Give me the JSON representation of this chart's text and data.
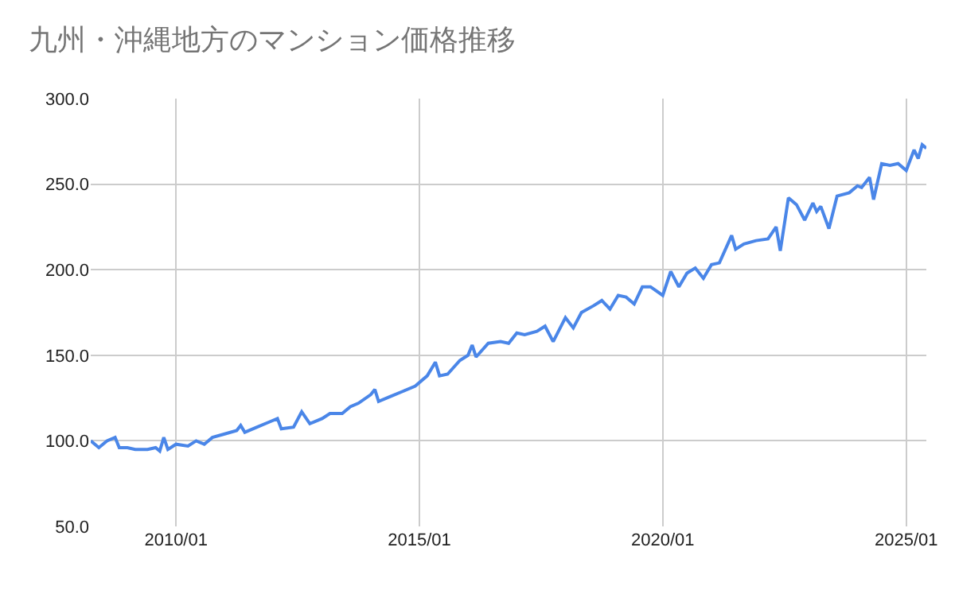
{
  "chart_data": {
    "type": "line",
    "title": "九州・沖縄地方のマンション価格推移",
    "x": [
      "2008-04",
      "2008-06",
      "2008-08",
      "2008-10",
      "2008-11",
      "2009-01",
      "2009-03",
      "2009-06",
      "2009-08",
      "2009-09",
      "2009-10",
      "2009-11",
      "2010-01",
      "2010-04",
      "2010-06",
      "2010-08",
      "2010-10",
      "2011-01",
      "2011-04",
      "2011-05",
      "2011-06",
      "2011-09",
      "2011-12",
      "2012-02",
      "2012-03",
      "2012-06",
      "2012-08",
      "2012-10",
      "2013-01",
      "2013-03",
      "2013-06",
      "2013-08",
      "2013-10",
      "2014-01",
      "2014-02",
      "2014-03",
      "2014-06",
      "2014-09",
      "2014-12",
      "2015-03",
      "2015-05",
      "2015-06",
      "2015-08",
      "2015-11",
      "2016-01",
      "2016-02",
      "2016-03",
      "2016-06",
      "2016-09",
      "2016-11",
      "2017-01",
      "2017-03",
      "2017-06",
      "2017-08",
      "2017-10",
      "2018-01",
      "2018-03",
      "2018-05",
      "2018-08",
      "2018-10",
      "2018-12",
      "2019-02",
      "2019-04",
      "2019-06",
      "2019-08",
      "2019-10",
      "2020-01",
      "2020-03",
      "2020-05",
      "2020-07",
      "2020-09",
      "2020-11",
      "2021-01",
      "2021-03",
      "2021-06",
      "2021-07",
      "2021-09",
      "2021-12",
      "2022-03",
      "2022-05",
      "2022-06",
      "2022-08",
      "2022-10",
      "2022-12",
      "2023-02",
      "2023-03",
      "2023-04",
      "2023-06",
      "2023-08",
      "2023-11",
      "2024-01",
      "2024-02",
      "2024-04",
      "2024-05",
      "2024-07",
      "2024-09",
      "2024-11",
      "2025-01",
      "2025-03",
      "2025-04",
      "2025-05",
      "2025-06"
    ],
    "series": [
      {
        "color": "#4a86e8",
        "values": [
          100,
          96,
          100,
          102,
          96,
          96,
          95,
          95,
          96,
          94,
          102,
          95,
          98,
          97,
          100,
          98,
          102,
          104,
          106,
          109,
          105,
          108,
          111,
          113,
          107,
          108,
          117,
          110,
          113,
          116,
          116,
          120,
          122,
          127,
          130,
          123,
          126,
          129,
          132,
          138,
          146,
          138,
          139,
          147,
          150,
          156,
          149,
          157,
          158,
          157,
          163,
          162,
          164,
          167,
          158,
          172,
          166,
          175,
          179,
          182,
          177,
          185,
          184,
          180,
          190,
          190,
          185,
          199,
          190,
          198,
          201,
          195,
          203,
          204,
          220,
          212,
          215,
          217,
          218,
          225,
          211,
          242,
          238,
          229,
          239,
          234,
          237,
          224,
          243,
          245,
          249,
          248,
          254,
          241,
          262,
          261,
          262,
          258,
          270,
          265,
          273,
          271
        ]
      }
    ],
    "xlim": [
      "2008-04",
      "2025-06"
    ],
    "xticks": [
      {
        "value": "2010-01",
        "label": "2010/01"
      },
      {
        "value": "2015-01",
        "label": "2015/01"
      },
      {
        "value": "2020-01",
        "label": "2020/01"
      },
      {
        "value": "2025-01",
        "label": "2025/01"
      }
    ],
    "ylim": [
      50,
      300
    ],
    "yticks": [
      {
        "value": 50,
        "label": "50.0"
      },
      {
        "value": 100,
        "label": "100.0"
      },
      {
        "value": 150,
        "label": "150.0"
      },
      {
        "value": 200,
        "label": "200.0"
      },
      {
        "value": 250,
        "label": "250.0"
      },
      {
        "value": 300,
        "label": "300.0"
      }
    ],
    "grid": true,
    "marker": "none",
    "line_style": "solid"
  }
}
